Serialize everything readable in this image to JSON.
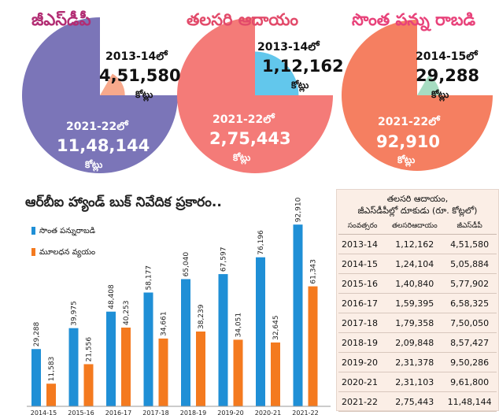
{
  "pies": [
    {
      "title": "జీఎస్‌డీపీ",
      "title_color": "#b22d73",
      "colors": {
        "big": "#7b75b8",
        "small": "#f7a98c"
      },
      "small_year": "2013-14లో",
      "small_value": "4,51,580",
      "small_unit": "కోట్లు",
      "big_year": "2021-22లో",
      "big_value": "11,48,144",
      "big_unit": "కోట్లు"
    },
    {
      "title": "తలసరి ఆదాయం",
      "title_color": "#e24a6a",
      "colors": {
        "big": "#f47b78",
        "small": "#62c7ec"
      },
      "small_year": "2013-14లో",
      "small_value": "1,12,162",
      "small_unit": "కోట్లు",
      "big_year": "2021-22లో",
      "big_value": "2,75,443",
      "big_unit": "కోట్లు"
    },
    {
      "title": "సొంత పన్ను రాబడి",
      "title_color": "#e8427a",
      "colors": {
        "big": "#f57f61",
        "small": "#a6dcc1"
      },
      "small_year": "2014-15లో",
      "small_value": "29,288",
      "small_unit": "కోట్లు",
      "big_year": "2021-22లో",
      "big_value": "92,910",
      "big_unit": "కోట్లు"
    }
  ],
  "headline": "ఆర్‌బీఐ హ్యాండ్ బుక్ నివేదిక ప్రకారం..",
  "table": {
    "title_line1": "తలసరి ఆదాయం,",
    "title_line2": "జీఎస్‌డీపీల్లో దూకుడు (రూ. కోట్లలో)",
    "headers": [
      "సంవత్సరం",
      "తలసరిఆదాయం",
      "జీఎస్‌డీపీ"
    ],
    "rows": [
      [
        "2013-14",
        "1,12,162",
        "4,51,580"
      ],
      [
        "2014-15",
        "1,24,104",
        "5,05,884"
      ],
      [
        "2015-16",
        "1,40,840",
        "5,77,902"
      ],
      [
        "2016-17",
        "1,59,395",
        "6,58,325"
      ],
      [
        "2017-18",
        "1,79,358",
        "7,50,050"
      ],
      [
        "2018-19",
        "2,09,848",
        "8,57,427"
      ],
      [
        "2019-20",
        "2,31,378",
        "9,50,286"
      ],
      [
        "2020-21",
        "2,31,103",
        "9,61,800"
      ],
      [
        "2021-22",
        "2,75,443",
        "11,48,144"
      ]
    ]
  },
  "chart_data": {
    "type": "bar",
    "categories": [
      "2014-15",
      "2015-16",
      "2016-17",
      "2017-18",
      "2018-19",
      "2019-20",
      "2020-21",
      "2021-22"
    ],
    "series": [
      {
        "name": "సొంత పన్నురాబడి",
        "color": "#1f8fd6",
        "values": [
          29288,
          39975,
          48408,
          58177,
          65040,
          67597,
          76196,
          92910
        ],
        "labels": [
          "29,288",
          "39,975",
          "48,408",
          "58,177",
          "65,040",
          "67,597",
          "76,196",
          "92,910"
        ]
      },
      {
        "name": "మూలధన వ్యయం",
        "color": "#f47a1f",
        "values": [
          11583,
          21556,
          40253,
          34661,
          38239,
          34051,
          32645,
          61343
        ],
        "labels": [
          "11,583",
          "21,556",
          "40,253",
          "34,661",
          "38,239",
          "34,051",
          "32,645",
          "61,343"
        ]
      }
    ],
    "title": "",
    "xlabel": "",
    "ylabel": "",
    "ylim": [
      0,
      95000
    ],
    "grid": false,
    "legend_position": "top-left"
  }
}
